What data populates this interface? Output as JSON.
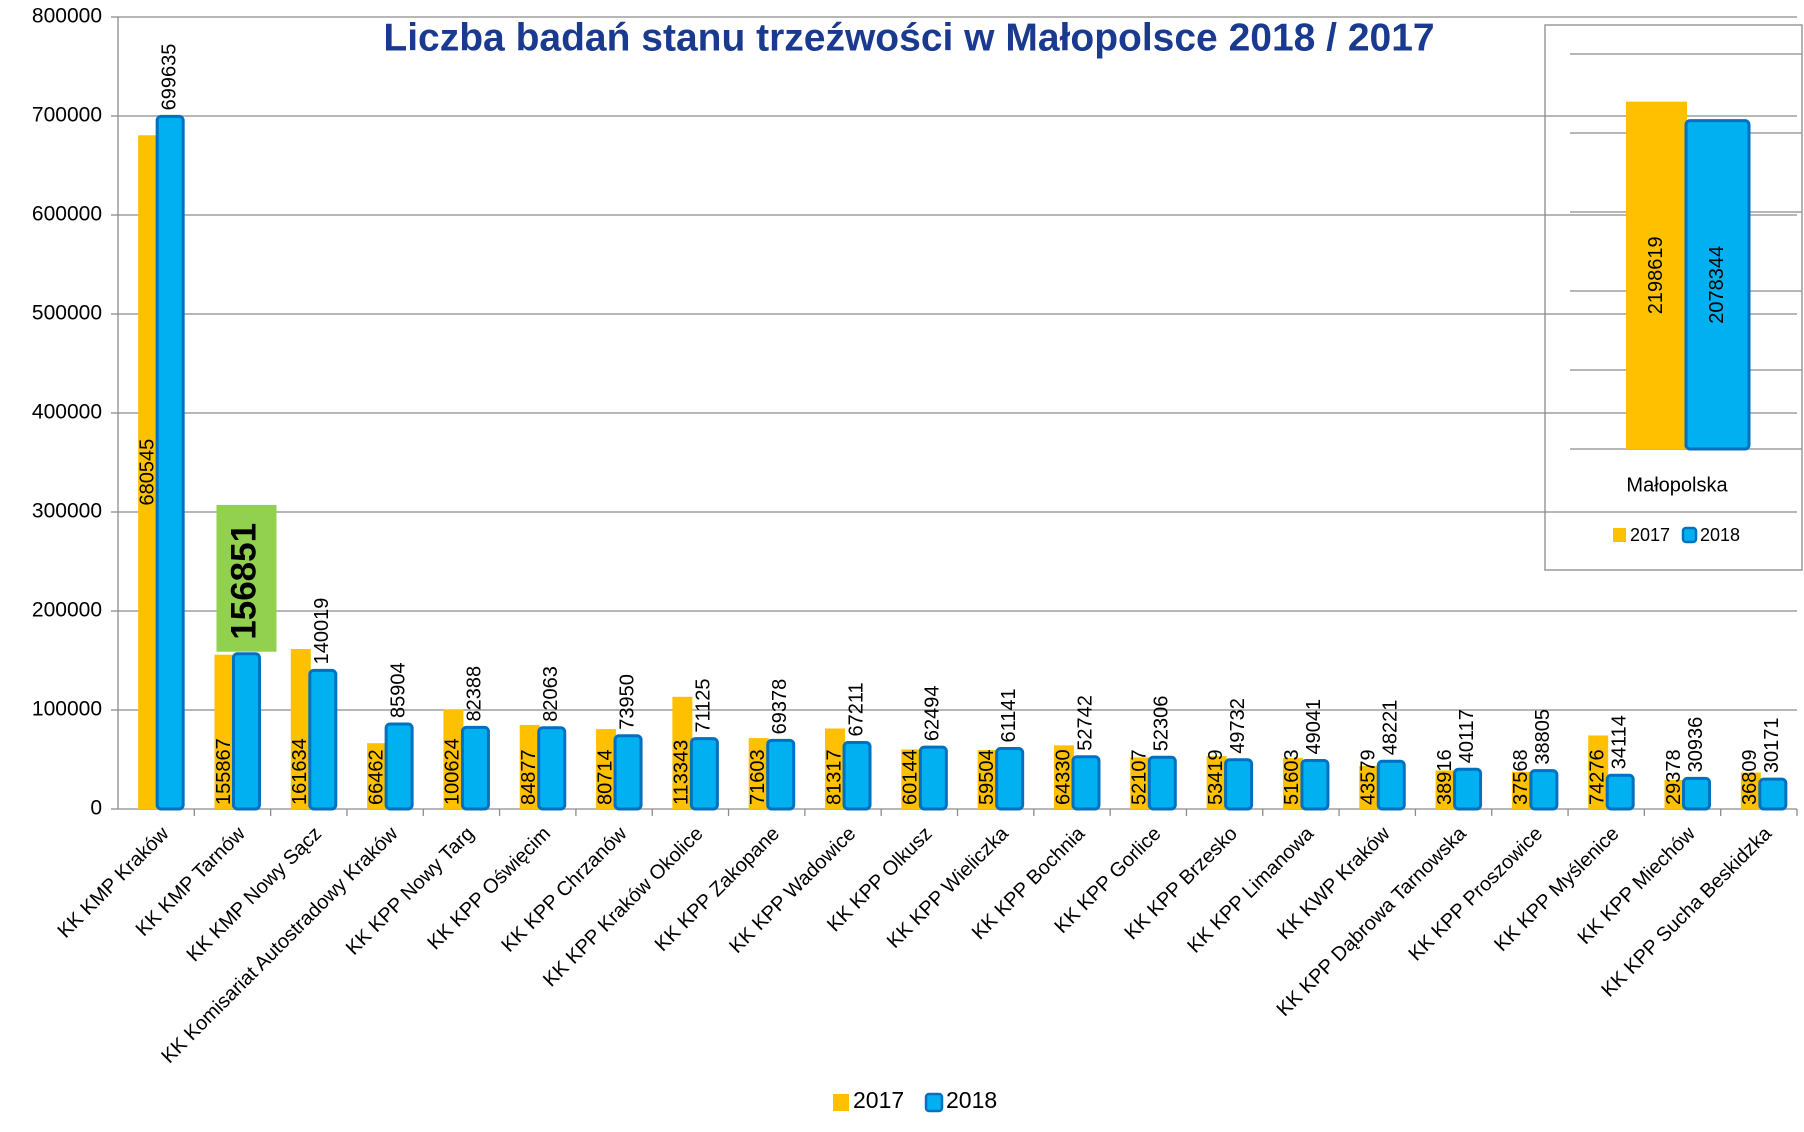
{
  "chart_data": [
    {
      "type": "bar",
      "title": "Liczba badań stanu trzeźwości w  Małopolsce 2018 / 2017",
      "categories": [
        "KK KMP Kraków",
        "KK KMP Tarnów",
        "KK KMP Nowy Sącz",
        "KK Komisariat Autostradowy Kraków",
        "KK KPP Nowy Targ",
        "KK KPP Oświęcim",
        "KK KPP Chrzanów",
        "KK KPP Kraków Okolice",
        "KK KPP Zakopane",
        "KK KPP Wadowice",
        "KK KPP Olkusz",
        "KK KPP Wieliczka",
        "KK KPP Bochnia",
        "KK KPP Gorlice",
        "KK KPP Brzesko",
        "KK KPP Limanowa",
        "KK KWP Kraków",
        "KK KPP Dąbrowa Tarnowska",
        "KK KPP Proszowice",
        "KK KPP Myślenice",
        "KK KPP Miechów",
        "KK KPP Sucha Beskidzka"
      ],
      "series": [
        {
          "name": "2017",
          "color": "#ffc000",
          "values": [
            680545,
            155867,
            161634,
            66462,
            100624,
            84877,
            80714,
            113343,
            71603,
            81317,
            60144,
            59504,
            64330,
            52107,
            53419,
            51603,
            43579,
            38916,
            37568,
            74276,
            29378,
            36809
          ]
        },
        {
          "name": "2018",
          "color": "#00b0f0",
          "values": [
            699635,
            156851,
            140019,
            85904,
            82388,
            82063,
            73950,
            71125,
            69378,
            67211,
            62494,
            61141,
            52742,
            52306,
            49732,
            49041,
            48221,
            40117,
            38805,
            34114,
            30936,
            30171
          ]
        }
      ],
      "highlight": {
        "series": 1,
        "index": 1,
        "color": "#92d050"
      },
      "ylim": [
        0,
        800000
      ],
      "yticks": [
        0,
        100000,
        200000,
        300000,
        400000,
        500000,
        600000,
        700000,
        800000
      ],
      "grid": true,
      "legend": "bottom"
    },
    {
      "type": "bar",
      "categories": [
        "Małopolska"
      ],
      "series": [
        {
          "name": "2017",
          "color": "#ffc000",
          "values": [
            2198619
          ]
        },
        {
          "name": "2018",
          "color": "#00b0f0",
          "values": [
            2078344
          ]
        }
      ],
      "ylim": [
        0,
        2500000
      ],
      "yticks": [
        0,
        500000,
        1000000,
        1500000,
        2000000,
        2500000
      ],
      "grid": true,
      "legend": "bottom"
    }
  ]
}
